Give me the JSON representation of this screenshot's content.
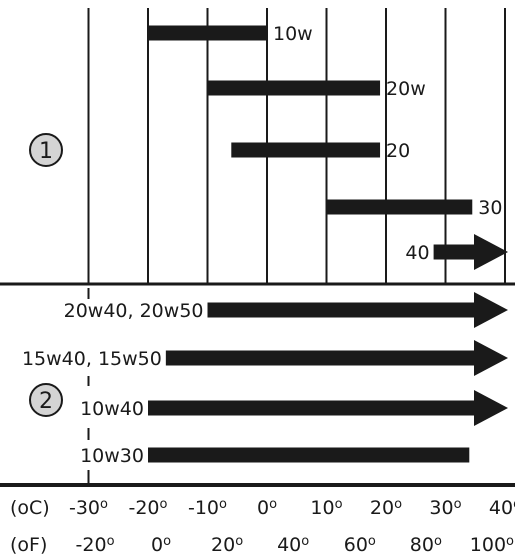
{
  "chart_data": {
    "type": "range-bar",
    "section_markers": [
      "1",
      "2"
    ],
    "temperature_scale_c": [
      -30,
      -20,
      -10,
      0,
      10,
      20,
      30,
      40
    ],
    "gridlines_c": [
      -20,
      -10,
      0,
      10,
      20,
      30,
      40
    ],
    "axis_c": {
      "unit_label": "(oC)",
      "ticks": [
        {
          "label": "-30o",
          "value": -30
        },
        {
          "label": "-20o",
          "value": -20
        },
        {
          "label": "-10o",
          "value": -10
        },
        {
          "label": "0o",
          "value": 0
        },
        {
          "label": "10o",
          "value": 10
        },
        {
          "label": "20o",
          "value": 20
        },
        {
          "label": "30o",
          "value": 30
        },
        {
          "label": "40o",
          "value": 40
        }
      ]
    },
    "axis_f": {
      "unit_label": "(oF)",
      "ticks": [
        {
          "label": "-20o",
          "c": -28.9
        },
        {
          "label": "0o",
          "c": -17.8
        },
        {
          "label": "20o",
          "c": -6.7
        },
        {
          "label": "40o",
          "c": 4.4
        },
        {
          "label": "60o",
          "c": 15.6
        },
        {
          "label": "80o",
          "c": 26.7
        },
        {
          "label": "100o",
          "c": 37.8
        }
      ]
    },
    "series": [
      {
        "name": "10w",
        "section": 1,
        "min_c": -20,
        "max_c": 0,
        "open_ended": false,
        "label_side": "right"
      },
      {
        "name": "20w",
        "section": 1,
        "min_c": -10,
        "max_c": 19,
        "open_ended": false,
        "label_side": "right"
      },
      {
        "name": "20",
        "section": 1,
        "min_c": -6,
        "max_c": 19,
        "open_ended": false,
        "label_side": "right"
      },
      {
        "name": "30",
        "section": 1,
        "min_c": 10,
        "max_c": 34.5,
        "open_ended": false,
        "label_side": "right"
      },
      {
        "name": "40",
        "section": 1,
        "min_c": 28,
        "max_c": null,
        "open_ended": true,
        "label_side": "left"
      },
      {
        "name": "20w40, 20w50",
        "section": 2,
        "min_c": -10,
        "max_c": null,
        "open_ended": true,
        "label_side": "left"
      },
      {
        "name": "15w40, 15w50",
        "section": 2,
        "min_c": -17,
        "max_c": null,
        "open_ended": true,
        "label_side": "left"
      },
      {
        "name": "10w40",
        "section": 2,
        "min_c": -20,
        "max_c": null,
        "open_ended": true,
        "label_side": "left"
      },
      {
        "name": "10w30",
        "section": 2,
        "min_c": -20,
        "max_c": 34,
        "open_ended": false,
        "label_side": "left"
      }
    ]
  }
}
